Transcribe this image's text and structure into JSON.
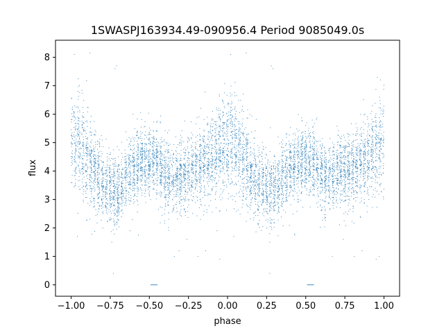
{
  "chart_data": {
    "type": "scatter",
    "title": "1SWASPJ163934.49-090956.4 Period 9085049.0s",
    "xlabel": "phase",
    "ylabel": "flux",
    "xlim": [
      -1.1,
      1.1
    ],
    "ylim": [
      -0.4,
      8.6
    ],
    "xticks": [
      -1.0,
      -0.75,
      -0.5,
      -0.25,
      0.0,
      0.25,
      0.5,
      0.75,
      1.0
    ],
    "xtick_labels": [
      "−1.00",
      "−0.75",
      "−0.50",
      "−0.25",
      "0.00",
      "0.25",
      "0.50",
      "0.75",
      "1.00"
    ],
    "yticks": [
      0,
      1,
      2,
      3,
      4,
      5,
      6,
      7,
      8
    ],
    "ytick_labels": [
      "0",
      "1",
      "2",
      "3",
      "4",
      "5",
      "6",
      "7",
      "8"
    ],
    "grid": false,
    "marker_color": "#1f77b4",
    "profile": {
      "phase": [
        -1.0,
        -0.95,
        -0.9,
        -0.85,
        -0.8,
        -0.75,
        -0.7,
        -0.65,
        -0.6,
        -0.55,
        -0.5,
        -0.45,
        -0.4,
        -0.35,
        -0.3,
        -0.25,
        -0.2,
        -0.15,
        -0.1,
        -0.05,
        0.0,
        0.05,
        0.1,
        0.15,
        0.2,
        0.25,
        0.3,
        0.35,
        0.4,
        0.45,
        0.5,
        0.55,
        0.6,
        0.65,
        0.7,
        0.75,
        0.8,
        0.85,
        0.9,
        0.95,
        1.0
      ],
      "flux": [
        5.0,
        5.0,
        4.4,
        3.9,
        3.6,
        3.4,
        3.2,
        3.8,
        4.1,
        4.3,
        4.4,
        4.3,
        3.8,
        3.7,
        3.9,
        4.0,
        4.2,
        4.3,
        4.4,
        4.9,
        5.0,
        4.9,
        4.4,
        3.9,
        3.6,
        3.4,
        3.3,
        3.7,
        4.1,
        4.3,
        4.4,
        4.3,
        3.8,
        3.7,
        3.9,
        4.0,
        4.1,
        4.3,
        4.4,
        4.9,
        5.0
      ],
      "scatter": [
        0.9,
        0.9,
        0.8,
        0.7,
        0.65,
        0.6,
        0.6,
        0.6,
        0.6,
        0.6,
        0.6,
        0.6,
        0.6,
        0.6,
        0.6,
        0.6,
        0.6,
        0.65,
        0.7,
        0.85,
        0.9,
        0.85,
        0.8,
        0.7,
        0.65,
        0.6,
        0.6,
        0.6,
        0.6,
        0.6,
        0.6,
        0.6,
        0.6,
        0.6,
        0.6,
        0.6,
        0.6,
        0.65,
        0.7,
        0.85,
        0.9
      ]
    },
    "outliers": [
      {
        "x": -0.98,
        "y": 8.1
      },
      {
        "x": -0.88,
        "y": 8.15
      },
      {
        "x": -0.72,
        "y": 7.6
      },
      {
        "x": -0.71,
        "y": 7.7
      },
      {
        "x": 0.02,
        "y": 8.1
      },
      {
        "x": 0.12,
        "y": 8.15
      },
      {
        "x": 0.29,
        "y": 7.6
      },
      {
        "x": 0.28,
        "y": 7.7
      },
      {
        "x": -0.74,
        "y": 1.5
      },
      {
        "x": -0.34,
        "y": 1.0
      },
      {
        "x": -0.31,
        "y": 1.2
      },
      {
        "x": -0.19,
        "y": 1.0
      },
      {
        "x": 0.27,
        "y": 1.5
      },
      {
        "x": 0.67,
        "y": 1.0
      },
      {
        "x": 0.81,
        "y": 1.0
      },
      {
        "x": 0.97,
        "y": 1.0
      },
      {
        "x": -0.96,
        "y": 1.7
      },
      {
        "x": 0.04,
        "y": 1.7
      },
      {
        "x": -0.05,
        "y": 0.9
      },
      {
        "x": 0.95,
        "y": 0.9
      },
      {
        "x": -0.26,
        "y": 1.6
      },
      {
        "x": 0.74,
        "y": 1.6
      },
      {
        "x": -0.57,
        "y": 1.75
      },
      {
        "x": 0.43,
        "y": 1.75
      },
      {
        "x": -0.73,
        "y": 0.4
      },
      {
        "x": 0.27,
        "y": 0.4
      },
      {
        "x": 0.86,
        "y": 1.2
      },
      {
        "x": -0.14,
        "y": 1.2
      }
    ],
    "zero_clusters": [
      {
        "x_start": -0.49,
        "x_end": -0.45,
        "y": 0.0
      },
      {
        "x_start": 0.51,
        "x_end": 0.55,
        "y": 0.0
      }
    ]
  }
}
